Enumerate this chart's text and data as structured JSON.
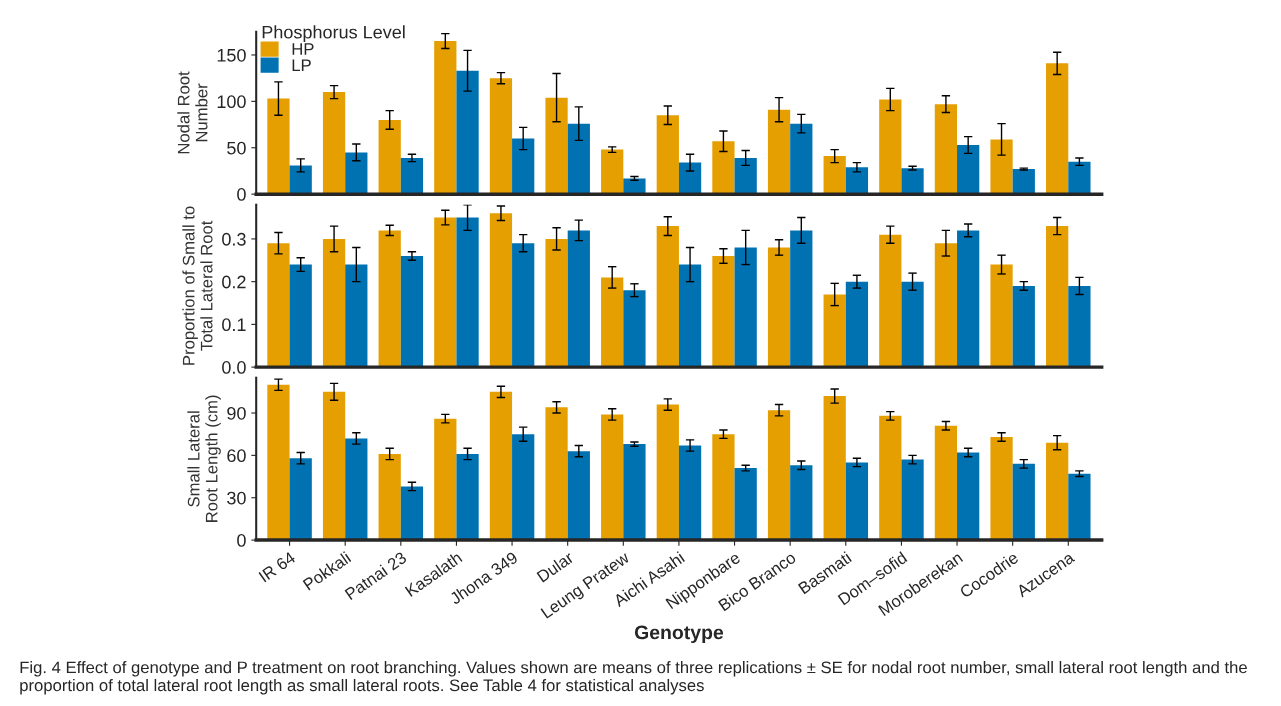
{
  "chart_data": [
    {
      "type": "bar",
      "ylabel": "Nodal Root\nNumber",
      "legend_title": "Phosphorus Level",
      "legend": "top left",
      "tick_labels": "y",
      "grid": false,
      "categories": [
        null,
        null,
        null,
        null,
        null,
        null,
        null,
        null,
        null,
        null,
        null,
        null,
        null,
        null,
        null
      ],
      "ylim": [
        0,
        175
      ],
      "yticks": [
        0,
        50,
        100,
        150
      ],
      "series": [
        {
          "name": "HP",
          "color": "#e69f00",
          "values": [
            103,
            110,
            80,
            165,
            125,
            104,
            48,
            85,
            57,
            91,
            41,
            102,
            97,
            59,
            141
          ],
          "errors": [
            18,
            7,
            10,
            8,
            6,
            26,
            3,
            10,
            11,
            13,
            7,
            12,
            9,
            17,
            12
          ]
        },
        {
          "name": "LP",
          "color": "#0072b2",
          "values": [
            31,
            45,
            39,
            133,
            60,
            76,
            17,
            34,
            39,
            76,
            29,
            28,
            53,
            27,
            35
          ],
          "errors": [
            7,
            9,
            4,
            22,
            12,
            18,
            2,
            9,
            8,
            10,
            5,
            2,
            9,
            1,
            4
          ]
        }
      ]
    },
    {
      "type": "bar",
      "ylabel": "Proportion of Small to\nTotal Lateral Root",
      "tick_labels": "y",
      "grid": false,
      "categories": [
        null,
        null,
        null,
        null,
        null,
        null,
        null,
        null,
        null,
        null,
        null,
        null,
        null,
        null,
        null
      ],
      "ylim": [
        0,
        0.38
      ],
      "yticks": [
        {
          "value": 0,
          "label": "0.0"
        },
        0.1,
        0.2,
        0.3
      ],
      "series": [
        {
          "color": "#e69f00",
          "values": [
            0.29,
            0.3,
            0.32,
            0.35,
            0.36,
            0.3,
            0.21,
            0.33,
            0.26,
            0.28,
            0.17,
            0.31,
            0.29,
            0.24,
            0.33
          ],
          "errors": [
            0.025,
            0.03,
            0.012,
            0.017,
            0.017,
            0.026,
            0.025,
            0.022,
            0.017,
            0.018,
            0.026,
            0.02,
            0.03,
            0.022,
            0.02
          ]
        },
        {
          "color": "#0072b2",
          "values": [
            0.24,
            0.24,
            0.26,
            0.35,
            0.29,
            0.32,
            0.18,
            0.24,
            0.28,
            0.32,
            0.2,
            0.2,
            0.32,
            0.19,
            0.19
          ],
          "errors": [
            0.016,
            0.04,
            0.01,
            0.03,
            0.02,
            0.024,
            0.015,
            0.04,
            0.04,
            0.03,
            0.015,
            0.02,
            0.015,
            0.01,
            0.02
          ]
        }
      ]
    },
    {
      "type": "bar",
      "ylabel": "Small Lateral\nRoot Length (cm)",
      "xlabel": "Genotype",
      "grid": false,
      "categories": [
        "IR 64",
        "Pokkali",
        "Patnai 23",
        "Kasalath",
        "Jhona 349",
        "Dular",
        "Leung Pratew",
        "Aichi Asahi",
        "Nipponbare",
        "Bico Branco",
        "Basmati",
        "Dom–sofid",
        "Moroberekan",
        "Cocodrie",
        "Azucena"
      ],
      "ylim": [
        0,
        115
      ],
      "yticks": [
        0,
        30,
        60,
        90
      ],
      "series": [
        {
          "color": "#e69f00",
          "values": [
            110,
            105,
            61,
            86,
            105,
            94,
            89,
            96,
            75,
            92,
            102,
            88,
            81,
            73,
            69
          ],
          "errors": [
            4,
            6,
            4,
            3,
            4,
            4,
            4,
            4,
            3,
            4,
            5,
            3,
            3,
            3,
            5
          ]
        },
        {
          "color": "#0072b2",
          "values": [
            58,
            72,
            38,
            61,
            75,
            63,
            68,
            67,
            51,
            53,
            55,
            57,
            62,
            54,
            47
          ],
          "errors": [
            4,
            4,
            3,
            4,
            5,
            4,
            1.5,
            4,
            2,
            3,
            3,
            3,
            3,
            3,
            2
          ]
        }
      ],
      "annotations": [
        "Fig. 4 Effect of genotype and P treatment on root branching. Values shown are means of three replications ± SE for nodal root number, small lateral root length and the proportion of total lateral root length as small lateral roots. See Table 4 for statistical analyses"
      ]
    }
  ]
}
